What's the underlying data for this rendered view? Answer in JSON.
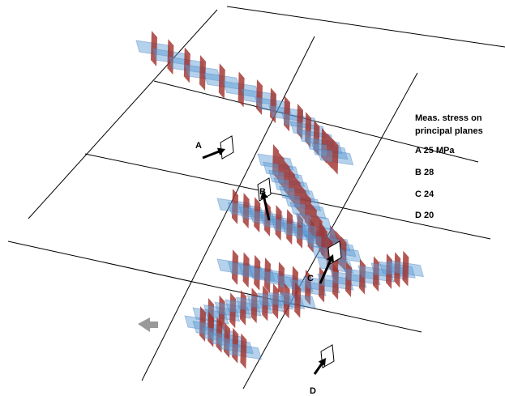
{
  "legend": {
    "title_lines": [
      "Meas. stress on",
      "principal planes"
    ],
    "items": [
      "A 25 MPa",
      "B 28",
      "C 24",
      "D 20"
    ]
  },
  "points": [
    {
      "label": "A"
    },
    {
      "label": "B"
    },
    {
      "label": "C"
    },
    {
      "label": "D"
    }
  ]
}
